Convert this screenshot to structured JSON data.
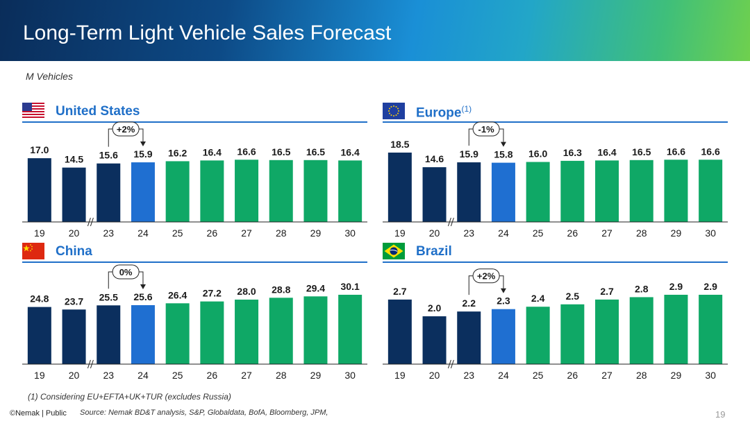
{
  "page": {
    "title": "Long-Term Light Vehicle Sales Forecast",
    "unit_label": "M Vehicles",
    "footnote": "(1) Considering EU+EFTA+UK+TUR (excludes Russia)",
    "source": "Source: Nemak BD&T analysis, S&P, Globaldata, BofA, Bloomberg, JPM,",
    "copyright": "©Nemak | Public",
    "page_number": "19"
  },
  "colors": {
    "historical": "#0b2f5e",
    "current": "#1f6fd1",
    "forecast": "#0fa866",
    "accent": "#1f6fc8"
  },
  "panels": [
    {
      "name": "United States",
      "footnote_marker": "",
      "flag": "us-flag-icon"
    },
    {
      "name": "Europe",
      "footnote_marker": "(1)",
      "flag": "eu-flag-icon"
    },
    {
      "name": "China",
      "footnote_marker": "",
      "flag": "china-flag-icon"
    },
    {
      "name": "Brazil",
      "footnote_marker": "",
      "flag": "brazil-flag-icon"
    }
  ],
  "chart_data": [
    {
      "type": "bar",
      "title": "United States",
      "categories": [
        "19",
        "20",
        "23",
        "24",
        "25",
        "26",
        "27",
        "28",
        "29",
        "30"
      ],
      "values": [
        17.0,
        14.5,
        15.6,
        15.9,
        16.2,
        16.4,
        16.6,
        16.5,
        16.5,
        16.4
      ],
      "labels": [
        "17.0",
        "14.5",
        "15.6",
        "15.9",
        "16.2",
        "16.4",
        "16.6",
        "16.5",
        "16.5",
        "16.4"
      ],
      "period": [
        "historical",
        "historical",
        "historical",
        "current",
        "forecast",
        "forecast",
        "forecast",
        "forecast",
        "forecast",
        "forecast"
      ],
      "axis_break_after": "20",
      "annotation": {
        "text": "+2%",
        "from": "23",
        "to": "24"
      },
      "ylim": [
        0,
        18.5
      ]
    },
    {
      "type": "bar",
      "title": "Europe(1)",
      "categories": [
        "19",
        "20",
        "23",
        "24",
        "25",
        "26",
        "27",
        "28",
        "29",
        "30"
      ],
      "values": [
        18.5,
        14.6,
        15.9,
        15.8,
        16.0,
        16.3,
        16.4,
        16.5,
        16.6,
        16.6
      ],
      "labels": [
        "18.5",
        "14.6",
        "15.9",
        "15.8",
        "16.0",
        "16.3",
        "16.4",
        "16.5",
        "16.6",
        "16.6"
      ],
      "period": [
        "historical",
        "historical",
        "historical",
        "current",
        "forecast",
        "forecast",
        "forecast",
        "forecast",
        "forecast",
        "forecast"
      ],
      "axis_break_after": "20",
      "annotation": {
        "text": "-1%",
        "from": "23",
        "to": "24"
      },
      "ylim": [
        0,
        18.5
      ]
    },
    {
      "type": "bar",
      "title": "China",
      "categories": [
        "19",
        "20",
        "23",
        "24",
        "25",
        "26",
        "27",
        "28",
        "29",
        "30"
      ],
      "values": [
        24.8,
        23.7,
        25.5,
        25.6,
        26.4,
        27.2,
        28.0,
        28.8,
        29.4,
        30.1
      ],
      "labels": [
        "24.8",
        "23.7",
        "25.5",
        "25.6",
        "26.4",
        "27.2",
        "28.0",
        "28.8",
        "29.4",
        "30.1"
      ],
      "period": [
        "historical",
        "historical",
        "historical",
        "current",
        "forecast",
        "forecast",
        "forecast",
        "forecast",
        "forecast",
        "forecast"
      ],
      "axis_break_after": "20",
      "annotation": {
        "text": "0%",
        "from": "23",
        "to": "24"
      },
      "ylim": [
        0,
        30.1
      ]
    },
    {
      "type": "bar",
      "title": "Brazil",
      "categories": [
        "19",
        "20",
        "23",
        "24",
        "25",
        "26",
        "27",
        "28",
        "29",
        "30"
      ],
      "values": [
        2.7,
        2.0,
        2.2,
        2.3,
        2.4,
        2.5,
        2.7,
        2.8,
        2.9,
        2.9
      ],
      "labels": [
        "2.7",
        "2.0",
        "2.2",
        "2.3",
        "2.4",
        "2.5",
        "2.7",
        "2.8",
        "2.9",
        "2.9"
      ],
      "period": [
        "historical",
        "historical",
        "historical",
        "current",
        "forecast",
        "forecast",
        "forecast",
        "forecast",
        "forecast",
        "forecast"
      ],
      "axis_break_after": "20",
      "annotation": {
        "text": "+2%",
        "from": "23",
        "to": "24"
      },
      "ylim": [
        0,
        2.9
      ]
    }
  ]
}
